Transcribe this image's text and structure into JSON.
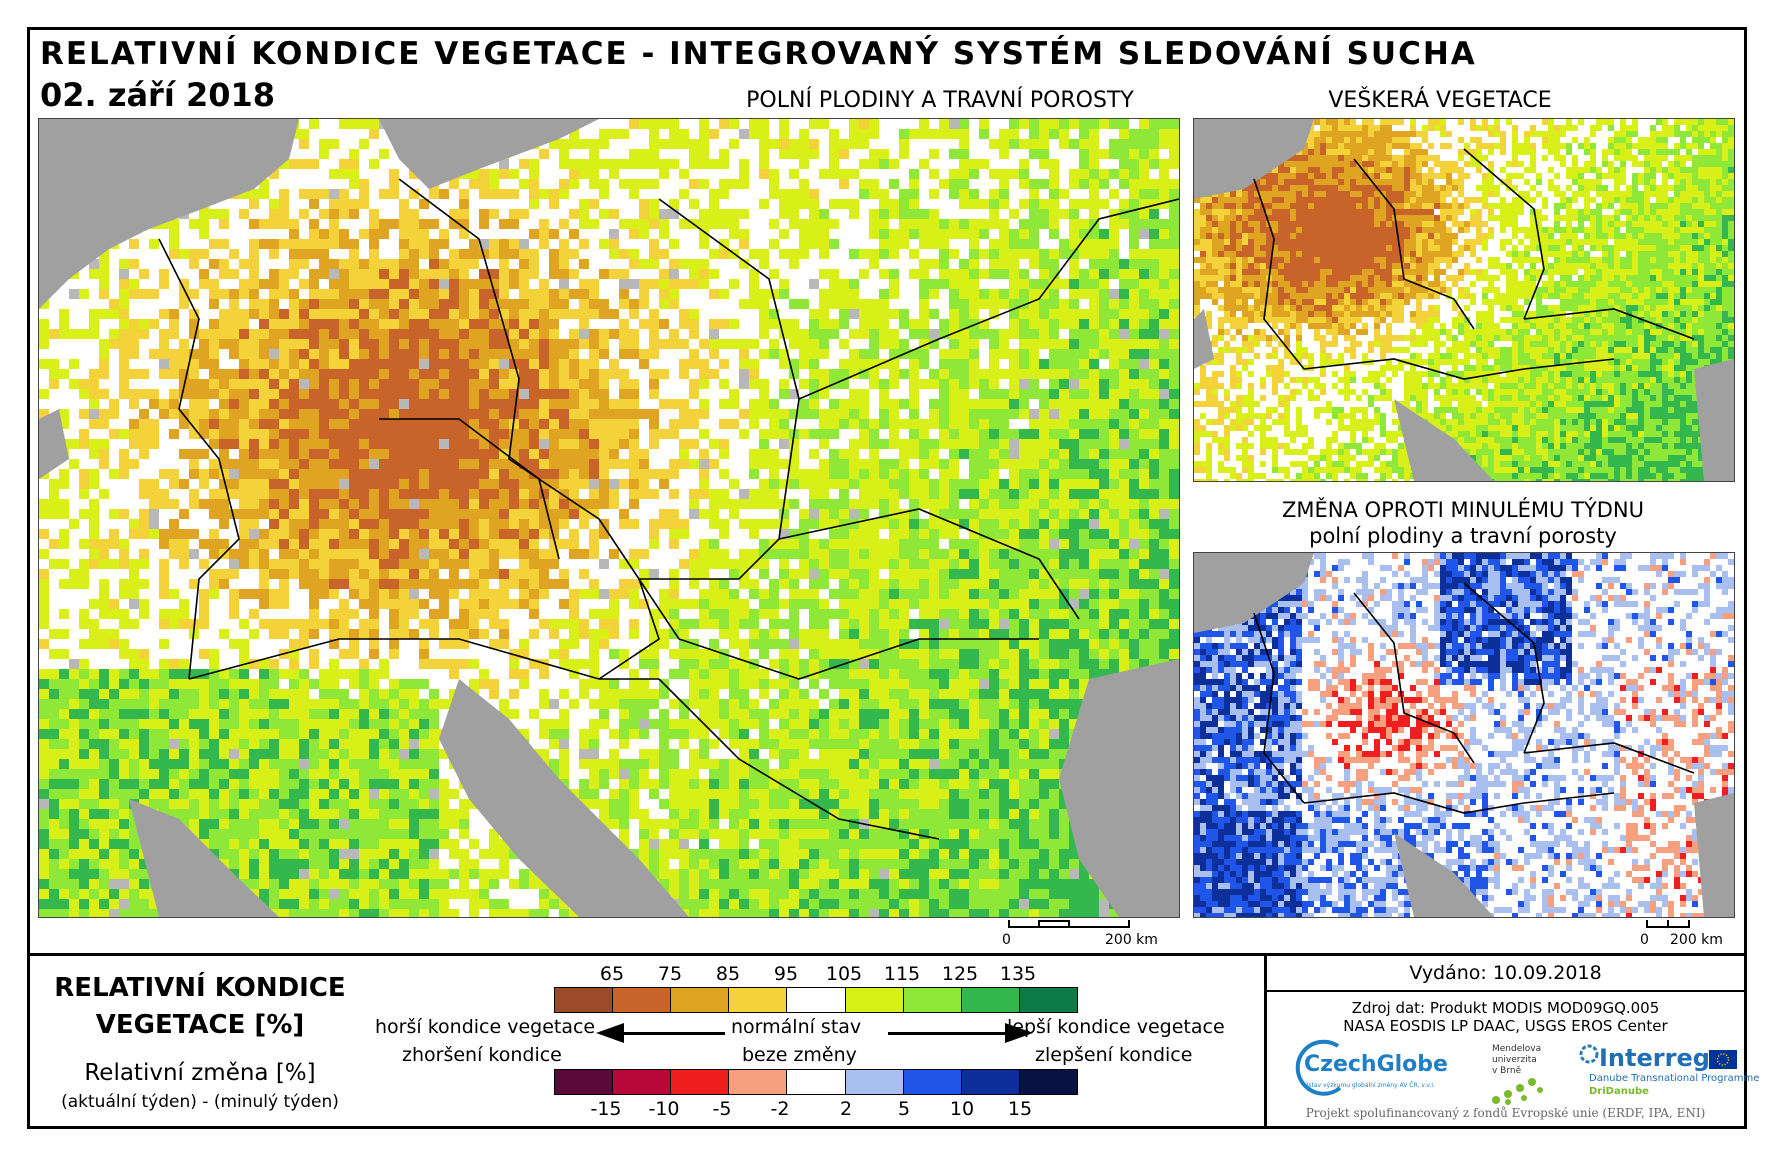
{
  "header": {
    "title": "RELATIVNÍ KONDICE VEGETACE - INTEGROVANÝ SYSTÉM SLEDOVÁNÍ SUCHA",
    "date": "02. září 2018"
  },
  "maps": {
    "main_label": "POLNÍ PLODINY A TRAVNÍ POROSTY",
    "all_veg_label": "VEŠKERÁ VEGETACE",
    "change_label_line1": "ZMĚNA OPROTI MINULÉMU TÝDNU",
    "change_label_line2": "polní plodiny a travní porosty",
    "scale_zero": "0",
    "scale_km": "200 km"
  },
  "legend": {
    "title_line1": "RELATIVNÍ KONDICE",
    "title_line2": "VEGETACE [%]",
    "change_title": "Relativní změna [%]",
    "change_sub": "(aktuální týden) - (minulý týden)",
    "condition_ticks": [
      "65",
      "75",
      "85",
      "95",
      "105",
      "115",
      "125",
      "135"
    ],
    "condition_colors": [
      "#9b4a2c",
      "#c8632a",
      "#e0a423",
      "#f4d23a",
      "#ffffff",
      "#d9f018",
      "#8fe837",
      "#34b84e",
      "#0e7a47"
    ],
    "change_ticks": [
      "-15",
      "-10",
      "-5",
      "-2",
      "2",
      "5",
      "10",
      "15"
    ],
    "change_colors": [
      "#5a0a3a",
      "#b8083a",
      "#ef1f1f",
      "#f7a080",
      "#ffffff",
      "#a9bff0",
      "#1f55e8",
      "#0c2f9a",
      "#0a1245"
    ],
    "worse_condition": "horší kondice vegetace",
    "worse_change": "zhoršení kondice",
    "normal": "normální stav",
    "no_change": "beze změny",
    "better_condition": "lepší kondice vegetace",
    "better_change": "zlepšení kondice"
  },
  "info": {
    "issued": "Vydáno: 10.09.2018",
    "source_line1": "Zdroj dat: Produkt MODIS MOD09GQ.005",
    "source_line2": "NASA EOSDIS LP DAAC, USGS EROS Center",
    "czechglobe": "CzechGlobe",
    "czechglobe_sub": "Ústav výzkumu globální změny AV ČR, v.v.i.",
    "mendel_line1": "Mendelova",
    "mendel_line2": "univerzita",
    "mendel_line3": "v Brně",
    "interreg": "Interreg",
    "interreg_sub": "Danube Transnational Programme",
    "dridanube": "DriDanube",
    "footer": "Projekt spolufinancovaný z fondů Evropské unie (ERDF, IPA, ENI)"
  }
}
